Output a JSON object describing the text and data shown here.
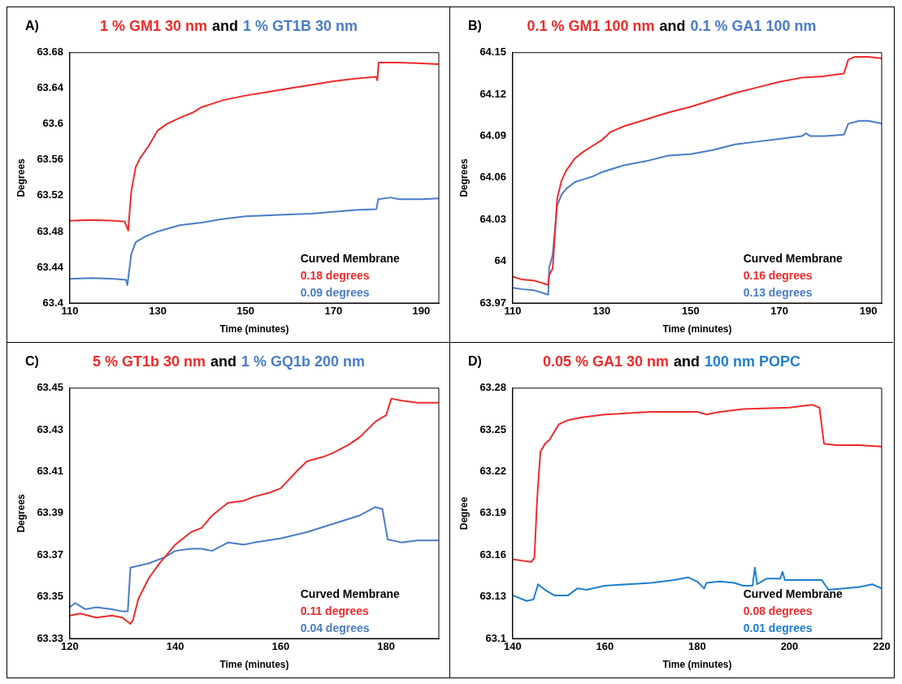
{
  "chart_data": [
    {
      "type": "line",
      "xlabel": "Time (minutes)",
      "ylabel": "Degrees",
      "annotations": [
        "A)",
        "and",
        "Curved Membrane",
        "0.18 degrees",
        "0.09 degrees"
      ],
      "xlim": [
        110,
        194
      ],
      "xticks": [
        110,
        130,
        150,
        170,
        190
      ],
      "ylim": [
        63.4,
        63.68
      ],
      "yticks": [
        63.4,
        63.44,
        63.48,
        63.52,
        63.56,
        63.6,
        63.64,
        63.68
      ],
      "grid": false,
      "legend": false,
      "marker": "none",
      "line_style": "solid",
      "series": [
        {
          "name": "1 % GM1 30 nm",
          "color": "#ee2b2b",
          "x": [
            110,
            115,
            120,
            122.5,
            123.3,
            123.5,
            124,
            125,
            126,
            128,
            130,
            132,
            135,
            138,
            140,
            145,
            150,
            155,
            160,
            165,
            170,
            175,
            179.7,
            180,
            180.3,
            185,
            190,
            194
          ],
          "values": [
            63.492,
            63.493,
            63.492,
            63.491,
            63.481,
            63.495,
            63.525,
            63.552,
            63.562,
            63.576,
            63.593,
            63.6,
            63.607,
            63.613,
            63.619,
            63.627,
            63.632,
            63.636,
            63.64,
            63.644,
            63.648,
            63.651,
            63.653,
            63.649,
            63.669,
            63.669,
            63.668,
            63.667
          ]
        },
        {
          "name": "1 % GT1B 30 nm",
          "color": "#4a7cc8",
          "x": [
            110,
            115,
            120,
            122.8,
            123.1,
            124,
            125,
            127,
            130,
            135,
            140,
            145,
            150,
            160,
            165,
            170,
            175,
            179.8,
            180.2,
            183,
            185,
            190,
            194
          ],
          "values": [
            63.427,
            63.428,
            63.427,
            63.426,
            63.42,
            63.455,
            63.468,
            63.474,
            63.48,
            63.487,
            63.49,
            63.494,
            63.497,
            63.499,
            63.5,
            63.502,
            63.504,
            63.505,
            63.516,
            63.518,
            63.516,
            63.516,
            63.517
          ]
        }
      ]
    },
    {
      "type": "line",
      "xlabel": "Time (minutes)",
      "ylabel": "Degrees",
      "annotations": [
        "B)",
        "and",
        "Curved Membrane",
        "0.16 degrees",
        "0.13 degrees"
      ],
      "xlim": [
        110,
        193
      ],
      "xticks": [
        110,
        130,
        150,
        170,
        190
      ],
      "ylim": [
        63.97,
        64.15
      ],
      "yticks": [
        63.97,
        64,
        64.03,
        64.06,
        64.09,
        64.12,
        64.15
      ],
      "grid": false,
      "legend": false,
      "marker": "none",
      "line_style": "solid",
      "series": [
        {
          "name": "0.1 % GM1 100 nm",
          "color": "#ee2b2b",
          "x": [
            110,
            112,
            115,
            118,
            118.2,
            119,
            119.5,
            120,
            121,
            122,
            124,
            126,
            128,
            130,
            132,
            135,
            140,
            145,
            150,
            155,
            160,
            165,
            170,
            175,
            180,
            184.5,
            185.5,
            187,
            190,
            193
          ],
          "values": [
            63.989,
            63.987,
            63.986,
            63.983,
            63.99,
            63.995,
            64.02,
            64.045,
            64.058,
            64.065,
            64.074,
            64.079,
            64.083,
            64.087,
            64.093,
            64.097,
            64.102,
            64.107,
            64.111,
            64.116,
            64.121,
            64.125,
            64.129,
            64.132,
            64.133,
            64.135,
            64.145,
            64.147,
            64.147,
            64.146
          ]
        },
        {
          "name": "0.1 % GA1 100 nm",
          "color": "#4a7cc8",
          "x": [
            110,
            112,
            115,
            118,
            118.2,
            119,
            120,
            121,
            122,
            124,
            126,
            128,
            130,
            135,
            140,
            145,
            150,
            155,
            160,
            165,
            170,
            175,
            176,
            177,
            180,
            184.5,
            185.5,
            188,
            190,
            193
          ],
          "values": [
            63.981,
            63.98,
            63.979,
            63.976,
            63.995,
            64.005,
            64.04,
            64.048,
            64.052,
            64.057,
            64.059,
            64.061,
            64.064,
            64.069,
            64.072,
            64.076,
            64.077,
            64.08,
            64.084,
            64.086,
            64.088,
            64.09,
            64.092,
            64.09,
            64.09,
            64.091,
            64.099,
            64.101,
            64.101,
            64.099
          ]
        }
      ]
    },
    {
      "type": "line",
      "xlabel": "Time (minutes)",
      "ylabel": "Degrees",
      "annotations": [
        "C)",
        "and",
        "Curved Membrane",
        "0.11 degrees",
        "0.04 degrees"
      ],
      "xlim": [
        120,
        190
      ],
      "xticks": [
        120,
        140,
        160,
        180
      ],
      "ylim": [
        63.33,
        63.45
      ],
      "yticks": [
        63.33,
        63.35,
        63.37,
        63.39,
        63.41,
        63.43,
        63.45
      ],
      "grid": false,
      "legend": false,
      "marker": "none",
      "line_style": "solid",
      "series": [
        {
          "name": "5 % GT1b 30 nm",
          "color": "#ee2b2b",
          "x": [
            120,
            122,
            125,
            128,
            130,
            131.5,
            132,
            133,
            135,
            137,
            139,
            140,
            143,
            145,
            147,
            150,
            153,
            155,
            158,
            160,
            163,
            165,
            168,
            170,
            173,
            175,
            178,
            180,
            181,
            183,
            186,
            190
          ],
          "values": [
            63.341,
            63.342,
            63.34,
            63.341,
            63.34,
            63.337,
            63.339,
            63.349,
            63.359,
            63.366,
            63.372,
            63.375,
            63.381,
            63.383,
            63.389,
            63.395,
            63.396,
            63.398,
            63.4,
            63.402,
            63.41,
            63.415,
            63.417,
            63.419,
            63.423,
            63.4265,
            63.434,
            63.437,
            63.445,
            63.444,
            63.443,
            63.443
          ]
        },
        {
          "name": "1 % GQ1b 200 nm",
          "color": "#4a7cc8",
          "x": [
            120,
            121,
            123,
            125,
            128,
            130,
            131,
            131.5,
            135,
            138,
            140,
            143,
            145,
            147,
            150,
            153,
            155,
            160,
            165,
            170,
            175,
            178,
            179.3,
            180.3,
            183,
            186,
            190
          ],
          "values": [
            63.345,
            63.347,
            63.344,
            63.345,
            63.344,
            63.343,
            63.343,
            63.364,
            63.366,
            63.369,
            63.372,
            63.373,
            63.373,
            63.372,
            63.376,
            63.375,
            63.376,
            63.378,
            63.381,
            63.385,
            63.389,
            63.393,
            63.392,
            63.3775,
            63.376,
            63.377,
            63.377
          ]
        }
      ]
    },
    {
      "type": "line",
      "xlabel": "Time (minutes)",
      "ylabel": "Degree",
      "annotations": [
        "D)",
        "and",
        "Curved Membrane",
        "0.08 degrees",
        "0.01 degrees"
      ],
      "xlim": [
        140,
        220
      ],
      "xticks": [
        140,
        160,
        180,
        200,
        220
      ],
      "ylim": [
        63.1,
        63.28
      ],
      "yticks": [
        63.1,
        63.13,
        63.16,
        63.19,
        63.22,
        63.25,
        63.28
      ],
      "grid": false,
      "legend": false,
      "marker": "none",
      "line_style": "solid",
      "series": [
        {
          "name": "0.05 % GA1 30 nm",
          "color": "#ee2b2b",
          "x": [
            140,
            142,
            144,
            144.7,
            145.3,
            146,
            147,
            148,
            150,
            152,
            155,
            160,
            170,
            180,
            182,
            185,
            190,
            200,
            205,
            206.5,
            207.5,
            210,
            215,
            220
          ],
          "values": [
            63.157,
            63.156,
            63.155,
            63.158,
            63.2,
            63.234,
            63.24,
            63.243,
            63.254,
            63.257,
            63.259,
            63.261,
            63.263,
            63.263,
            63.261,
            63.263,
            63.265,
            63.266,
            63.268,
            63.266,
            63.24,
            63.239,
            63.239,
            63.238
          ]
        },
        {
          "name": "100 nm POPC",
          "color": "#1f7fcf",
          "x": [
            140,
            143,
            144.5,
            145.5,
            147,
            149,
            152,
            154,
            156,
            160,
            165,
            170,
            175,
            178,
            180,
            181.5,
            182,
            185,
            188,
            190,
            192,
            192.5,
            193,
            195,
            198,
            198.5,
            199,
            205,
            207,
            208.5,
            212,
            215,
            218,
            220
          ],
          "values": [
            63.131,
            63.127,
            63.128,
            63.139,
            63.135,
            63.131,
            63.131,
            63.136,
            63.135,
            63.138,
            63.139,
            63.14,
            63.142,
            63.144,
            63.141,
            63.136,
            63.14,
            63.141,
            63.14,
            63.138,
            63.138,
            63.151,
            63.139,
            63.143,
            63.143,
            63.148,
            63.142,
            63.142,
            63.142,
            63.135,
            63.136,
            63.137,
            63.139,
            63.136
          ]
        }
      ]
    }
  ]
}
